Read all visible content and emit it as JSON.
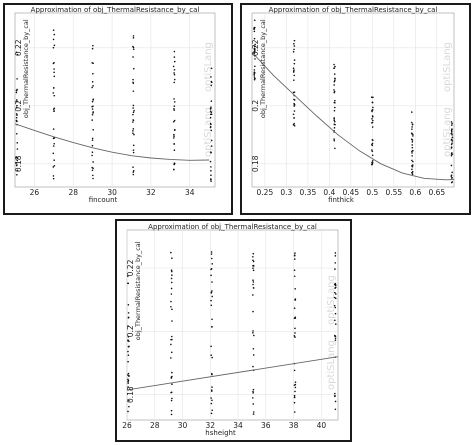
{
  "watermark": "optiSLang",
  "chart_data": [
    {
      "type": "scatter",
      "title": "Approximation of obj_ThermalResistance_by_cal",
      "xlabel": "fincount",
      "ylabel": "obj_ThermalResistance_by_cal",
      "xlim": [
        25,
        35.3
      ],
      "ylim": [
        0.172,
        0.232
      ],
      "x_ticks": [
        26,
        28,
        30,
        32,
        34
      ],
      "y_ticks": [
        0.18,
        0.2,
        0.22
      ],
      "x_tick_labels": [
        "26",
        "28",
        "30",
        "32",
        "34"
      ],
      "y_tick_labels": [
        "0.18",
        "0.2",
        "0.22"
      ],
      "grid": true,
      "columns": [
        {
          "x": 25.1,
          "y_range": [
            0.174,
            0.2205
          ]
        },
        {
          "x": 27.0,
          "y_range": [
            0.1745,
            0.2285
          ]
        },
        {
          "x": 29.0,
          "y_range": [
            0.1745,
            0.2255
          ]
        },
        {
          "x": 31.1,
          "y_range": [
            0.1745,
            0.2255
          ]
        },
        {
          "x": 33.2,
          "y_range": [
            0.174,
            0.2205
          ]
        },
        {
          "x": 35.1,
          "y_range": [
            0.174,
            0.2145
          ]
        }
      ],
      "trend": {
        "x": [
          25,
          26,
          27,
          28,
          29,
          30,
          31,
          32,
          33,
          34,
          35
        ],
        "y": [
          0.1938,
          0.1915,
          0.1893,
          0.1873,
          0.1855,
          0.184,
          0.1828,
          0.182,
          0.1815,
          0.1812,
          0.1813
        ]
      }
    },
    {
      "type": "scatter",
      "title": "Approximation of obj_ThermalResistance_by_cal",
      "xlabel": "finthick",
      "ylabel": "obj_ThermalResistance_by_cal",
      "xlim": [
        0.22,
        0.69
      ],
      "ylim": [
        0.172,
        0.232
      ],
      "x_ticks": [
        0.25,
        0.3,
        0.35,
        0.4,
        0.45,
        0.5,
        0.55,
        0.6,
        0.65
      ],
      "y_ticks": [
        0.18,
        0.2,
        0.22
      ],
      "x_tick_labels": [
        "0.25",
        "0.3",
        "0.35",
        "0.4",
        "0.45",
        "0.5",
        "0.55",
        "0.6",
        "0.65"
      ],
      "y_tick_labels": [
        "0.18",
        "0.2",
        "0.22"
      ],
      "grid": true,
      "columns": [
        {
          "x": 0.226,
          "y_range": [
            0.209,
            0.232
          ]
        },
        {
          "x": 0.318,
          "y_range": [
            0.193,
            0.2235
          ]
        },
        {
          "x": 0.412,
          "y_range": [
            0.184,
            0.2145
          ]
        },
        {
          "x": 0.5,
          "y_range": [
            0.178,
            0.2035
          ]
        },
        {
          "x": 0.593,
          "y_range": [
            0.174,
            0.1985
          ]
        },
        {
          "x": 0.685,
          "y_range": [
            0.173,
            0.195
          ]
        }
      ],
      "trend": {
        "x": [
          0.22,
          0.27,
          0.32,
          0.37,
          0.42,
          0.47,
          0.52,
          0.57,
          0.62,
          0.67,
          0.69
        ],
        "y": [
          0.2185,
          0.2105,
          0.2035,
          0.1965,
          0.19,
          0.1845,
          0.18,
          0.1768,
          0.175,
          0.1745,
          0.1746
        ]
      }
    },
    {
      "type": "scatter",
      "title": "Approximation of obj_ThermalResistance_by_cal",
      "xlabel": "hsheight",
      "ylabel": "obj_ThermalResistance_by_cal",
      "xlim": [
        26,
        41.2
      ],
      "ylim": [
        0.172,
        0.232
      ],
      "x_ticks": [
        26,
        28,
        30,
        32,
        34,
        36,
        38,
        40
      ],
      "y_ticks": [
        0.18,
        0.2,
        0.22
      ],
      "x_tick_labels": [
        "26",
        "28",
        "30",
        "32",
        "34",
        "36",
        "38",
        "40"
      ],
      "y_tick_labels": [
        "0.18",
        "0.2",
        "0.22"
      ],
      "grid": true,
      "columns": [
        {
          "x": 26.1,
          "y_range": [
            0.1735,
            0.219
          ]
        },
        {
          "x": 29.2,
          "y_range": [
            0.1735,
            0.2255
          ]
        },
        {
          "x": 32.1,
          "y_range": [
            0.1735,
            0.2255
          ]
        },
        {
          "x": 35.1,
          "y_range": [
            0.1735,
            0.2255
          ]
        },
        {
          "x": 38.1,
          "y_range": [
            0.1735,
            0.2255
          ]
        },
        {
          "x": 41.0,
          "y_range": [
            0.1735,
            0.2255
          ]
        }
      ],
      "trend": {
        "x": [
          26,
          41.2
        ],
        "y": [
          0.1815,
          0.192
        ]
      }
    }
  ]
}
